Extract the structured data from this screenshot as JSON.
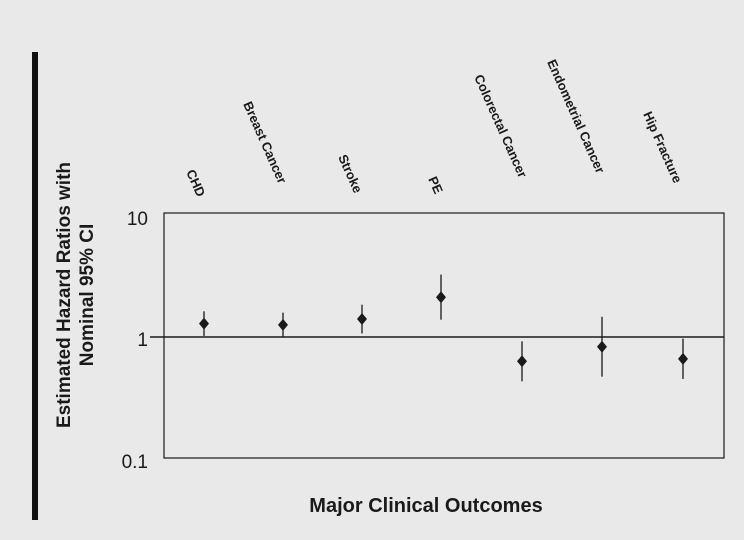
{
  "chart_data": {
    "type": "scatter",
    "title": "",
    "xlabel": "Major Clinical Outcomes",
    "ylabel_lines": [
      "Estimated Hazard Ratios with",
      "Nominal 95% CI"
    ],
    "y_scale": "log",
    "ylim": [
      0.1,
      10
    ],
    "y_ticks": [
      "10",
      "1",
      "0.1"
    ],
    "y_tick_values": [
      10,
      1,
      0.1
    ],
    "reference_line": 1,
    "grid": false,
    "legend": "none",
    "categories": [
      "CHD",
      "Breast Cancer",
      "Stroke",
      "PE",
      "Colorectal Cancer",
      "Endometrial Cancer",
      "Hip Fracture"
    ],
    "series": [
      {
        "estimate": [
          1.29,
          1.26,
          1.41,
          2.13,
          0.63,
          0.83,
          0.66
        ],
        "ci_lower": [
          1.02,
          1.0,
          1.07,
          1.39,
          0.43,
          0.47,
          0.45
        ],
        "ci_upper": [
          1.63,
          1.59,
          1.85,
          3.28,
          0.92,
          1.47,
          0.97
        ]
      }
    ],
    "colors": {
      "marker": "#1a1a1a",
      "background": "#e9e9e9",
      "frame": "#1a1a1a"
    }
  }
}
